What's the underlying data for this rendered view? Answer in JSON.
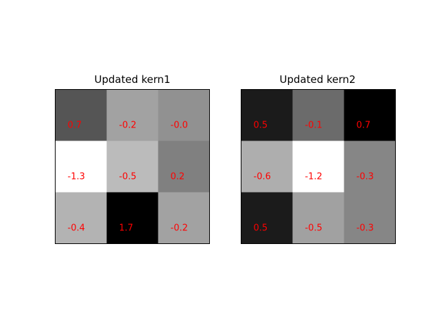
{
  "colors": {
    "background": "#ffffff",
    "annotation": "#ff0000",
    "frame": "#000000",
    "colormap": "gray_r"
  },
  "chart_data": [
    {
      "type": "heatmap",
      "title": "Updated kern1",
      "xlabel": "",
      "ylabel": "",
      "axes_visible": false,
      "values": [
        [
          0.7,
          -0.2,
          -0.0
        ],
        [
          -1.3,
          -0.5,
          0.2
        ],
        [
          -0.4,
          1.7,
          -0.2
        ]
      ],
      "labels": [
        [
          "0.7",
          "-0.2",
          "-0.0"
        ],
        [
          "-1.3",
          "-0.5",
          "0.2"
        ],
        [
          "-0.4",
          "1.7",
          "-0.2"
        ]
      ]
    },
    {
      "type": "heatmap",
      "title": "Updated kern2",
      "xlabel": "",
      "ylabel": "",
      "axes_visible": false,
      "values": [
        [
          0.5,
          -0.1,
          0.7
        ],
        [
          -0.6,
          -1.2,
          -0.3
        ],
        [
          0.5,
          -0.5,
          -0.3
        ]
      ],
      "labels": [
        [
          "0.5",
          "-0.1",
          "0.7"
        ],
        [
          "-0.6",
          "-1.2",
          "-0.3"
        ],
        [
          "0.5",
          "-0.5",
          "-0.3"
        ]
      ]
    }
  ]
}
